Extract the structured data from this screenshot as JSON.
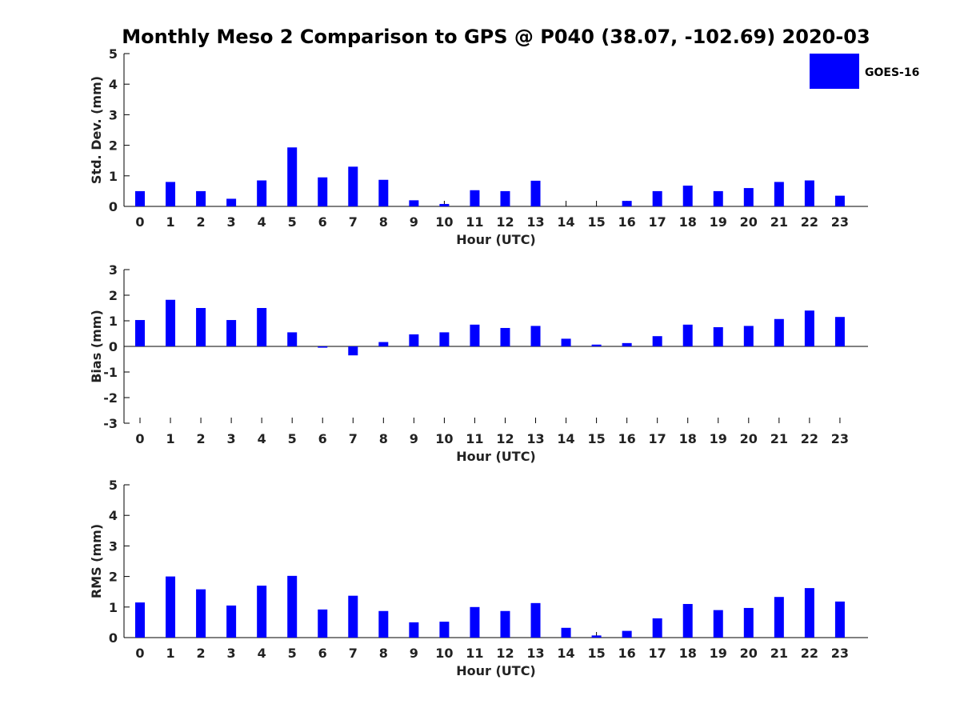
{
  "title": "Monthly Meso 2 Comparison to GPS @ P040 (38.07, -102.69) 2020-03",
  "legend": {
    "label": "GOES-16",
    "color": "#0000ff",
    "placement": "top-right"
  },
  "chart_data": [
    {
      "type": "bar",
      "name": "std-dev",
      "ylabel": "Std. Dev. (mm)",
      "xlabel": "Hour (UTC)",
      "ylim": [
        0,
        5
      ],
      "yticks": [
        0,
        1,
        2,
        3,
        4,
        5
      ],
      "categories": [
        "0",
        "1",
        "2",
        "3",
        "4",
        "5",
        "6",
        "7",
        "8",
        "9",
        "10",
        "11",
        "12",
        "13",
        "14",
        "15",
        "16",
        "17",
        "18",
        "19",
        "20",
        "21",
        "22",
        "23"
      ],
      "series": [
        {
          "name": "GOES-16",
          "color": "#0000ff",
          "values": [
            0.5,
            0.8,
            0.5,
            0.25,
            0.85,
            1.93,
            0.95,
            1.3,
            0.87,
            0.2,
            0.08,
            0.53,
            0.5,
            0.84,
            0,
            0,
            0.18,
            0.5,
            0.68,
            0.5,
            0.6,
            0.8,
            0.85,
            0.35
          ]
        }
      ]
    },
    {
      "type": "bar",
      "name": "bias",
      "ylabel": "Bias (mm)",
      "xlabel": "Hour (UTC)",
      "ylim": [
        -3,
        3
      ],
      "yticks": [
        -3,
        -2,
        -1,
        0,
        1,
        2,
        3
      ],
      "categories": [
        "0",
        "1",
        "2",
        "3",
        "4",
        "5",
        "6",
        "7",
        "8",
        "9",
        "10",
        "11",
        "12",
        "13",
        "14",
        "15",
        "16",
        "17",
        "18",
        "19",
        "20",
        "21",
        "22",
        "23"
      ],
      "series": [
        {
          "name": "GOES-16",
          "color": "#0000ff",
          "values": [
            1.03,
            1.82,
            1.5,
            1.03,
            1.5,
            0.55,
            -0.05,
            -0.35,
            0.17,
            0.47,
            0.55,
            0.85,
            0.72,
            0.8,
            0.3,
            0.07,
            0.13,
            0.4,
            0.85,
            0.75,
            0.8,
            1.07,
            1.4,
            1.15
          ]
        }
      ]
    },
    {
      "type": "bar",
      "name": "rms",
      "ylabel": "RMS (mm)",
      "xlabel": "Hour (UTC)",
      "ylim": [
        0,
        5
      ],
      "yticks": [
        0,
        1,
        2,
        3,
        4,
        5
      ],
      "categories": [
        "0",
        "1",
        "2",
        "3",
        "4",
        "5",
        "6",
        "7",
        "8",
        "9",
        "10",
        "11",
        "12",
        "13",
        "14",
        "15",
        "16",
        "17",
        "18",
        "19",
        "20",
        "21",
        "22",
        "23"
      ],
      "series": [
        {
          "name": "GOES-16",
          "color": "#0000ff",
          "values": [
            1.15,
            2.0,
            1.58,
            1.05,
            1.7,
            2.02,
            0.92,
            1.37,
            0.87,
            0.5,
            0.52,
            1.0,
            0.87,
            1.13,
            0.32,
            0.07,
            0.22,
            0.63,
            1.1,
            0.9,
            0.97,
            1.33,
            1.62,
            1.18
          ]
        }
      ]
    }
  ]
}
